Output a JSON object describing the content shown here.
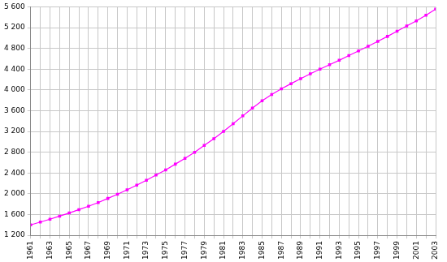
{
  "chart_data": {
    "type": "line",
    "categories": [
      "1961",
      null,
      "1963",
      null,
      "1965",
      null,
      "1967",
      null,
      "1969",
      null,
      "1971",
      null,
      "1973",
      null,
      "1975",
      null,
      "1977",
      null,
      "1979",
      null,
      "1981",
      null,
      "1983",
      null,
      "1985",
      null,
      "1987",
      null,
      "1989",
      null,
      "1991",
      null,
      "1993",
      null,
      "1995",
      null,
      "1997",
      null,
      "1999",
      null,
      "2001",
      null,
      "2003"
    ],
    "values": [
      1400,
      1455,
      1510,
      1570,
      1630,
      1695,
      1760,
      1830,
      1910,
      1990,
      2075,
      2165,
      2260,
      2360,
      2460,
      2570,
      2680,
      2800,
      2930,
      3060,
      3200,
      3350,
      3500,
      3650,
      3790,
      3910,
      4020,
      4120,
      4215,
      4310,
      4400,
      4485,
      4570,
      4660,
      4750,
      4840,
      4935,
      5030,
      5130,
      5230,
      5330,
      5440,
      5555
    ],
    "color": "#ff00ff",
    "marker": "square",
    "ylim": [
      1200,
      5600
    ],
    "yticks": [
      {
        "value": 1200,
        "label": "1 200"
      },
      {
        "value": 1600,
        "label": "1 600"
      },
      {
        "value": 2000,
        "label": "2 000"
      },
      {
        "value": 2400,
        "label": "2 400"
      },
      {
        "value": 2800,
        "label": "2 800"
      },
      {
        "value": 3200,
        "label": "3 200"
      },
      {
        "value": 3600,
        "label": "3 600"
      },
      {
        "value": 4000,
        "label": "4 000"
      },
      {
        "value": 4400,
        "label": "4 400"
      },
      {
        "value": 4800,
        "label": "4 800"
      },
      {
        "value": 5200,
        "label": "5 200"
      },
      {
        "value": 5600,
        "label": "5 600"
      }
    ],
    "grid": true
  }
}
